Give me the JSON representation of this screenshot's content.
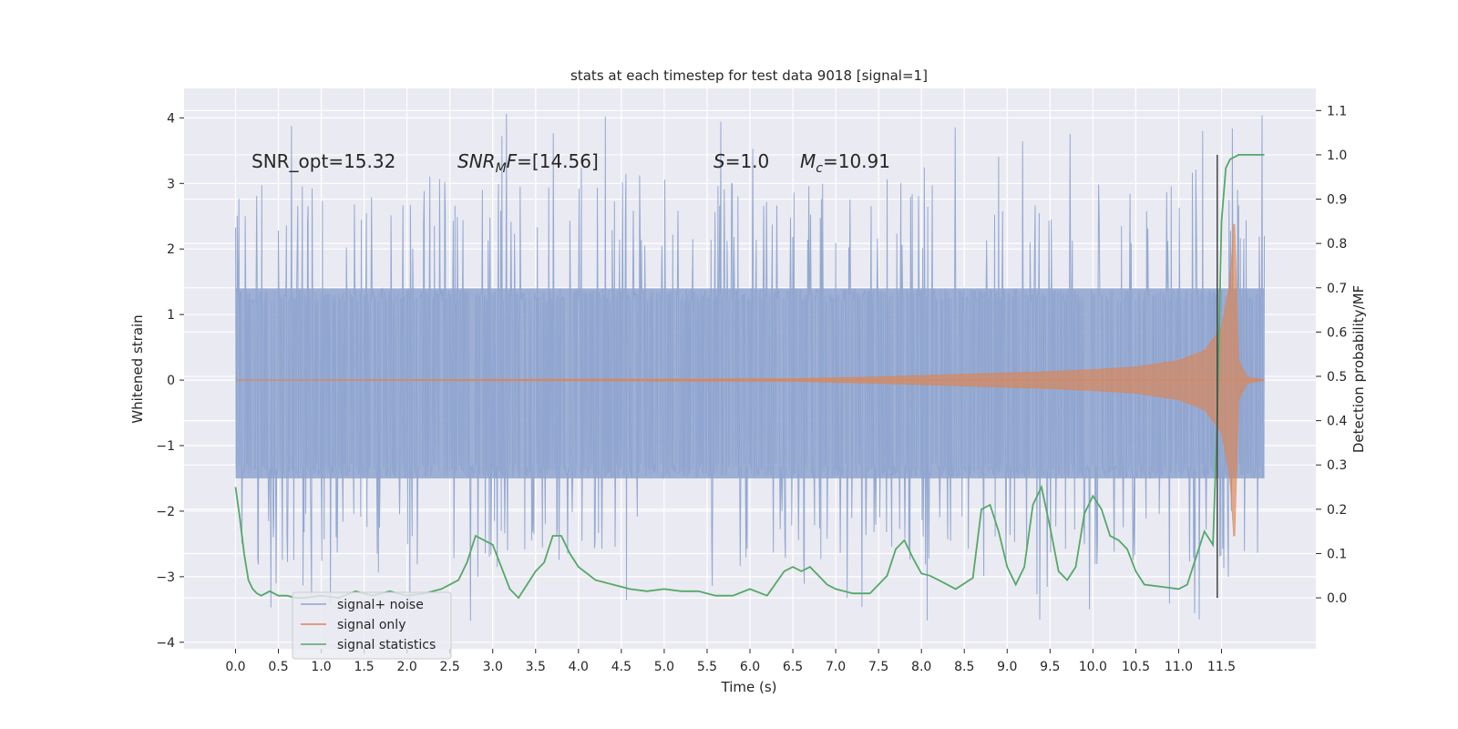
{
  "chart_data": {
    "type": "line",
    "title": "stats at each timestep for test data 9018 [signal=1]",
    "xlabel": "Time (s)",
    "ylabel": "Whitened strain",
    "y2label": "Detection probability/MF",
    "xlim": [
      -0.6,
      12.6
    ],
    "ylim": [
      -4.1,
      4.45
    ],
    "y2lim": [
      -0.115,
      1.15
    ],
    "xticks": [
      "0.0",
      "0.5",
      "1.0",
      "1.5",
      "2.0",
      "2.5",
      "3.0",
      "3.5",
      "4.0",
      "4.5",
      "5.0",
      "5.5",
      "6.0",
      "6.5",
      "7.0",
      "7.5",
      "8.0",
      "8.5",
      "9.0",
      "9.5",
      "10.0",
      "10.5",
      "11.0",
      "11.5"
    ],
    "yticks": [
      "−4",
      "−3",
      "−2",
      "−1",
      "0",
      "1",
      "2",
      "3",
      "4"
    ],
    "y2ticks": [
      "0.0",
      "0.1",
      "0.2",
      "0.3",
      "0.4",
      "0.5",
      "0.6",
      "0.7",
      "0.8",
      "0.9",
      "1.0",
      "1.1"
    ],
    "grid": true,
    "annotations": {
      "snr_opt": "SNR_opt=15.32",
      "snr_mf_sym": "SNR",
      "snr_mf_sub": "M",
      "snr_mf_sym2": "F",
      "snr_mf_val": "=[14.56]",
      "s_sym": "S",
      "s_val": "=1.0",
      "mc_sym": "M",
      "mc_sub": "c",
      "mc_val": "=10.91"
    },
    "legend": {
      "placement": "lower-left",
      "entries": [
        "signal+ noise",
        "signal only",
        "signal statistics"
      ]
    },
    "colors": {
      "noise": "#8fa5cf",
      "signal": "#dd8452",
      "stats": "#55a868",
      "vline": "#444444",
      "axes_bg": "#eaeaf2",
      "grid": "#ffffff"
    },
    "series": [
      {
        "name": "signal+ noise",
        "envelope": {
          "t_start": 0.0,
          "t_end": 12.0,
          "band_upper": 1.4,
          "band_lower": -1.5,
          "peak_upper_range": [
            2.0,
            4.1
          ],
          "peak_lower_range": [
            -2.0,
            -3.7
          ]
        }
      },
      {
        "name": "signal only",
        "envelope": {
          "t": [
            0.0,
            6.5,
            7.5,
            8.5,
            9.5,
            10.0,
            10.5,
            11.0,
            11.3,
            11.5,
            11.6,
            11.65,
            11.7,
            11.8,
            12.0
          ],
          "amplitude": [
            0.0,
            0.02,
            0.05,
            0.09,
            0.13,
            0.16,
            0.2,
            0.3,
            0.45,
            0.8,
            1.5,
            2.6,
            0.3,
            0.05,
            0.0
          ]
        }
      },
      {
        "name": "signal statistics",
        "x": [
          0.0,
          0.05,
          0.1,
          0.15,
          0.2,
          0.25,
          0.3,
          0.35,
          0.4,
          0.5,
          0.6,
          0.7,
          0.8,
          1.0,
          1.2,
          1.4,
          1.6,
          1.8,
          2.0,
          2.2,
          2.4,
          2.6,
          2.7,
          2.8,
          2.9,
          3.0,
          3.1,
          3.2,
          3.3,
          3.4,
          3.5,
          3.6,
          3.7,
          3.8,
          3.9,
          4.0,
          4.2,
          4.4,
          4.6,
          4.8,
          5.0,
          5.2,
          5.4,
          5.6,
          5.8,
          6.0,
          6.2,
          6.4,
          6.5,
          6.6,
          6.7,
          6.8,
          6.9,
          7.0,
          7.2,
          7.4,
          7.6,
          7.7,
          7.8,
          7.9,
          8.0,
          8.1,
          8.2,
          8.4,
          8.6,
          8.7,
          8.8,
          8.9,
          9.0,
          9.1,
          9.2,
          9.3,
          9.4,
          9.5,
          9.6,
          9.7,
          9.8,
          9.9,
          10.0,
          10.1,
          10.2,
          10.3,
          10.4,
          10.5,
          10.6,
          10.8,
          11.0,
          11.1,
          11.2,
          11.3,
          11.4,
          11.45,
          11.5,
          11.55,
          11.6,
          11.7,
          11.8,
          11.9,
          12.0
        ],
        "y": [
          0.25,
          0.18,
          0.1,
          0.04,
          0.02,
          0.01,
          0.005,
          0.01,
          0.015,
          0.005,
          0.005,
          0.0,
          0.0,
          0.005,
          0.0,
          0.015,
          0.005,
          0.015,
          0.005,
          0.01,
          0.02,
          0.04,
          0.08,
          0.14,
          0.13,
          0.12,
          0.07,
          0.02,
          0.0,
          0.03,
          0.06,
          0.08,
          0.14,
          0.14,
          0.1,
          0.07,
          0.04,
          0.03,
          0.02,
          0.015,
          0.02,
          0.015,
          0.015,
          0.005,
          0.005,
          0.02,
          0.005,
          0.06,
          0.07,
          0.06,
          0.07,
          0.05,
          0.03,
          0.02,
          0.01,
          0.01,
          0.05,
          0.11,
          0.13,
          0.09,
          0.055,
          0.05,
          0.04,
          0.02,
          0.045,
          0.2,
          0.21,
          0.15,
          0.07,
          0.03,
          0.07,
          0.21,
          0.25,
          0.16,
          0.06,
          0.04,
          0.07,
          0.19,
          0.23,
          0.2,
          0.14,
          0.13,
          0.11,
          0.06,
          0.03,
          0.025,
          0.02,
          0.03,
          0.09,
          0.15,
          0.12,
          0.4,
          0.85,
          0.97,
          0.99,
          1.0,
          1.0,
          1.0,
          1.0
        ]
      }
    ],
    "vline_x": 11.45
  }
}
